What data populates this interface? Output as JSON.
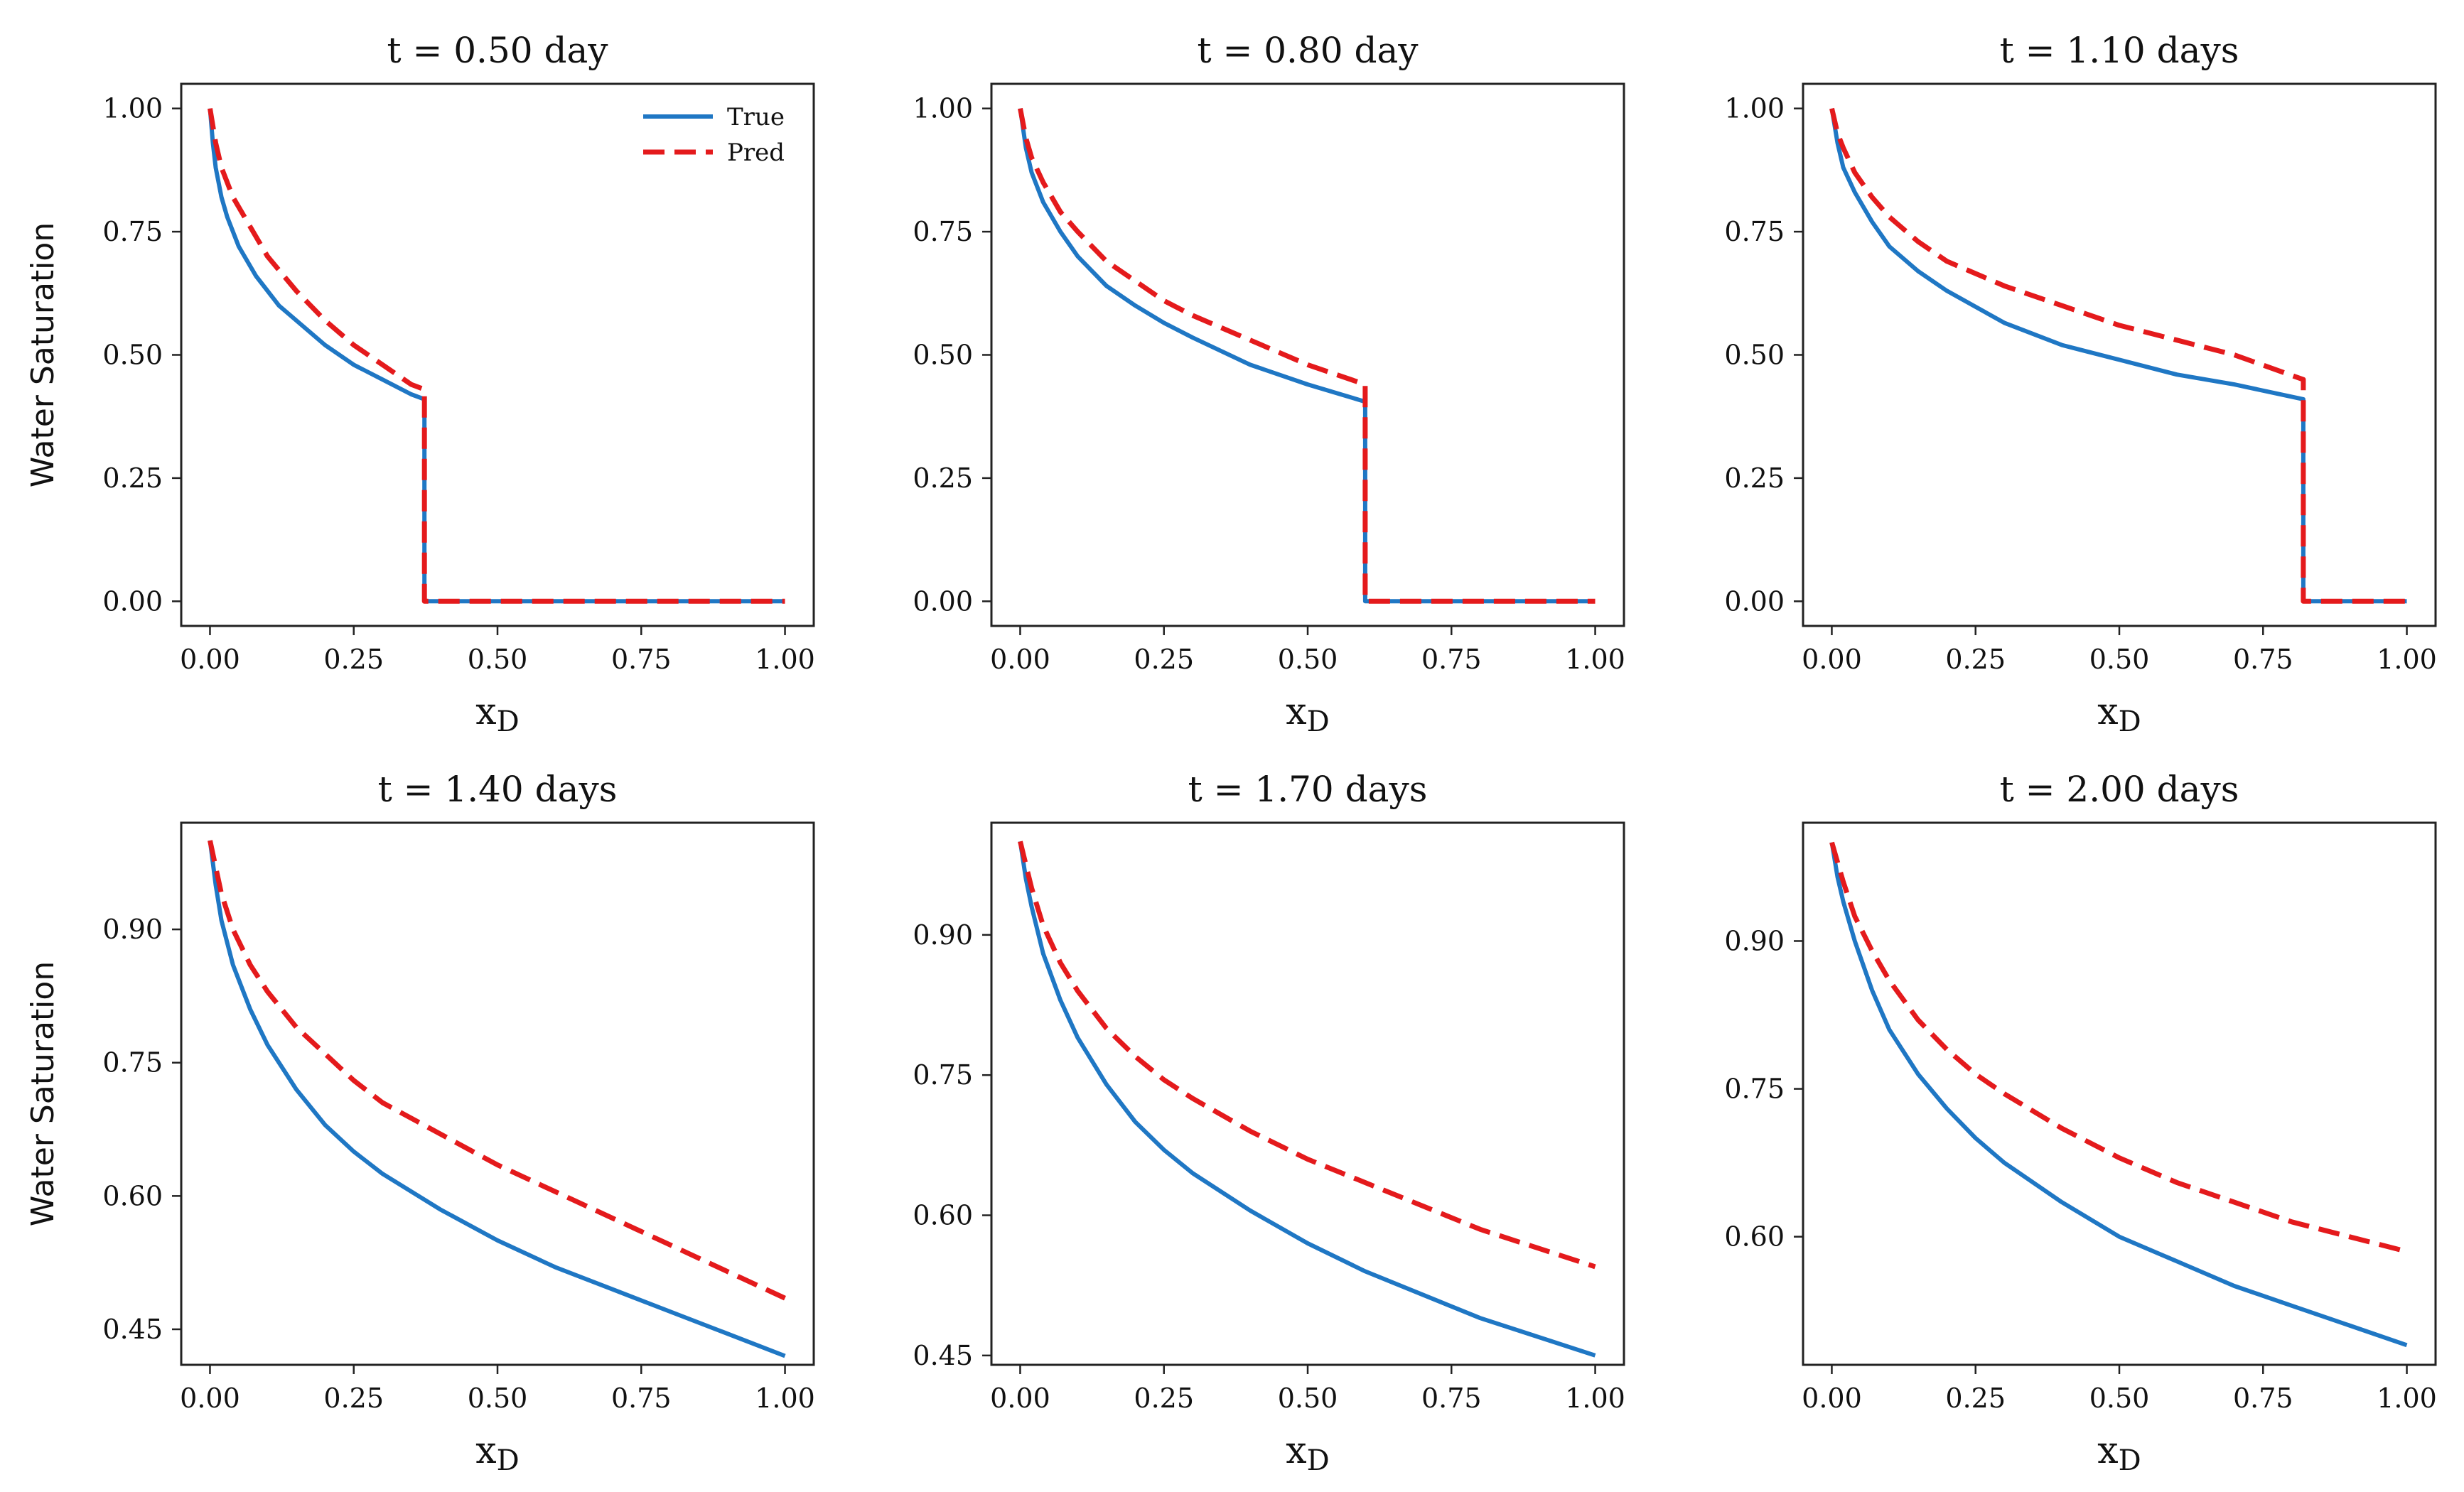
{
  "chart_data": [
    {
      "type": "line",
      "title": "t = 0.50 day",
      "xlabel": "x",
      "xlabel_sub": "D",
      "ylabel": "Water Saturation",
      "xlim": [
        -0.05,
        1.05
      ],
      "ylim": [
        -0.05,
        1.05
      ],
      "xticks": [
        0,
        0.25,
        0.5,
        0.75,
        1
      ],
      "xtick_labels": [
        "0.00",
        "0.25",
        "0.50",
        "0.75",
        "1.00"
      ],
      "yticks": [
        0,
        0.25,
        0.5,
        0.75,
        1
      ],
      "ytick_labels": [
        "0.00",
        "0.25",
        "0.50",
        "0.75",
        "1.00"
      ],
      "legend": {
        "position": "top-right",
        "entries": [
          "True",
          "Pred"
        ]
      },
      "series": [
        {
          "name": "True",
          "color": "#1f77c4",
          "style": "solid",
          "x": [
            0,
            0.005,
            0.01,
            0.02,
            0.03,
            0.05,
            0.08,
            0.12,
            0.16,
            0.2,
            0.25,
            0.3,
            0.35,
            0.373,
            0.373,
            0.4,
            0.5,
            0.6,
            0.7,
            0.8,
            0.9,
            1.0
          ],
          "y": [
            1.0,
            0.93,
            0.88,
            0.82,
            0.78,
            0.72,
            0.66,
            0.6,
            0.56,
            0.52,
            0.48,
            0.45,
            0.42,
            0.41,
            0.0,
            0,
            0,
            0,
            0,
            0,
            0,
            0
          ]
        },
        {
          "name": "Pred",
          "color": "#e41a1c",
          "style": "dashed",
          "x": [
            0,
            0.01,
            0.02,
            0.04,
            0.07,
            0.1,
            0.15,
            0.2,
            0.25,
            0.3,
            0.35,
            0.373,
            0.373,
            0.4,
            0.5,
            0.6,
            0.7,
            0.8,
            0.9,
            1.0
          ],
          "y": [
            1.0,
            0.93,
            0.88,
            0.82,
            0.76,
            0.7,
            0.63,
            0.57,
            0.52,
            0.48,
            0.44,
            0.43,
            0.0,
            0,
            0,
            0,
            0,
            0,
            0,
            0
          ]
        }
      ]
    },
    {
      "type": "line",
      "title": "t = 0.80 day",
      "xlabel": "x",
      "xlabel_sub": "D",
      "ylabel": "",
      "xlim": [
        -0.05,
        1.05
      ],
      "ylim": [
        -0.05,
        1.05
      ],
      "xticks": [
        0,
        0.25,
        0.5,
        0.75,
        1
      ],
      "xtick_labels": [
        "0.00",
        "0.25",
        "0.50",
        "0.75",
        "1.00"
      ],
      "yticks": [
        0,
        0.25,
        0.5,
        0.75,
        1
      ],
      "ytick_labels": [
        "0.00",
        "0.25",
        "0.50",
        "0.75",
        "1.00"
      ],
      "series": [
        {
          "name": "True",
          "color": "#1f77c4",
          "style": "solid",
          "x": [
            0,
            0.01,
            0.02,
            0.04,
            0.07,
            0.1,
            0.15,
            0.2,
            0.25,
            0.3,
            0.4,
            0.5,
            0.6,
            0.6,
            0.7,
            0.8,
            0.9,
            1.0
          ],
          "y": [
            1.0,
            0.92,
            0.87,
            0.81,
            0.75,
            0.7,
            0.64,
            0.6,
            0.565,
            0.535,
            0.48,
            0.44,
            0.405,
            0.0,
            0,
            0,
            0,
            0
          ]
        },
        {
          "name": "Pred",
          "color": "#e41a1c",
          "style": "dashed",
          "x": [
            0,
            0.01,
            0.02,
            0.04,
            0.07,
            0.1,
            0.15,
            0.2,
            0.25,
            0.3,
            0.4,
            0.5,
            0.6,
            0.6,
            0.7,
            0.8,
            0.9,
            1.0
          ],
          "y": [
            1.0,
            0.94,
            0.9,
            0.85,
            0.79,
            0.75,
            0.69,
            0.65,
            0.61,
            0.58,
            0.53,
            0.48,
            0.44,
            0.0,
            0,
            0,
            0,
            0
          ]
        }
      ]
    },
    {
      "type": "line",
      "title": "t = 1.10 days",
      "xlabel": "x",
      "xlabel_sub": "D",
      "ylabel": "",
      "xlim": [
        -0.05,
        1.05
      ],
      "ylim": [
        -0.05,
        1.05
      ],
      "xticks": [
        0,
        0.25,
        0.5,
        0.75,
        1
      ],
      "xtick_labels": [
        "0.00",
        "0.25",
        "0.50",
        "0.75",
        "1.00"
      ],
      "yticks": [
        0,
        0.25,
        0.5,
        0.75,
        1
      ],
      "ytick_labels": [
        "0.00",
        "0.25",
        "0.50",
        "0.75",
        "1.00"
      ],
      "series": [
        {
          "name": "True",
          "color": "#1f77c4",
          "style": "solid",
          "x": [
            0,
            0.01,
            0.02,
            0.04,
            0.07,
            0.1,
            0.15,
            0.2,
            0.3,
            0.4,
            0.5,
            0.6,
            0.7,
            0.82,
            0.82,
            0.9,
            1.0
          ],
          "y": [
            1.0,
            0.93,
            0.88,
            0.83,
            0.77,
            0.72,
            0.67,
            0.63,
            0.565,
            0.52,
            0.49,
            0.46,
            0.44,
            0.41,
            0.0,
            0,
            0
          ]
        },
        {
          "name": "Pred",
          "color": "#e41a1c",
          "style": "dashed",
          "x": [
            0,
            0.01,
            0.02,
            0.04,
            0.07,
            0.1,
            0.15,
            0.2,
            0.3,
            0.4,
            0.5,
            0.6,
            0.7,
            0.82,
            0.82,
            0.9,
            1.0
          ],
          "y": [
            1.0,
            0.95,
            0.92,
            0.87,
            0.82,
            0.78,
            0.73,
            0.69,
            0.64,
            0.6,
            0.56,
            0.53,
            0.5,
            0.45,
            0.0,
            0,
            0
          ]
        }
      ]
    },
    {
      "type": "line",
      "title": "t = 1.40 days",
      "xlabel": "x",
      "xlabel_sub": "D",
      "ylabel": "Water Saturation",
      "xlim": [
        -0.05,
        1.05
      ],
      "ylim": [
        0.41,
        1.02
      ],
      "xticks": [
        0,
        0.25,
        0.5,
        0.75,
        1
      ],
      "xtick_labels": [
        "0.00",
        "0.25",
        "0.50",
        "0.75",
        "1.00"
      ],
      "yticks": [
        0.45,
        0.6,
        0.75,
        0.9
      ],
      "ytick_labels": [
        "0.45",
        "0.60",
        "0.75",
        "0.90"
      ],
      "series": [
        {
          "name": "True",
          "color": "#1f77c4",
          "style": "solid",
          "x": [
            0,
            0.01,
            0.02,
            0.04,
            0.07,
            0.1,
            0.15,
            0.2,
            0.25,
            0.3,
            0.4,
            0.5,
            0.6,
            0.7,
            0.8,
            0.9,
            1.0
          ],
          "y": [
            1.0,
            0.95,
            0.91,
            0.86,
            0.81,
            0.77,
            0.72,
            0.68,
            0.65,
            0.625,
            0.585,
            0.55,
            0.52,
            0.495,
            0.47,
            0.445,
            0.42
          ]
        },
        {
          "name": "Pred",
          "color": "#e41a1c",
          "style": "dashed",
          "x": [
            0,
            0.01,
            0.02,
            0.04,
            0.07,
            0.1,
            0.15,
            0.2,
            0.25,
            0.3,
            0.4,
            0.5,
            0.6,
            0.7,
            0.8,
            0.9,
            1.0
          ],
          "y": [
            1.0,
            0.97,
            0.94,
            0.9,
            0.86,
            0.83,
            0.79,
            0.76,
            0.73,
            0.705,
            0.67,
            0.635,
            0.605,
            0.575,
            0.545,
            0.515,
            0.485
          ]
        }
      ]
    },
    {
      "type": "line",
      "title": "t = 1.70 days",
      "xlabel": "x",
      "xlabel_sub": "D",
      "ylabel": "",
      "xlim": [
        -0.05,
        1.05
      ],
      "ylim": [
        0.44,
        1.02
      ],
      "xticks": [
        0,
        0.25,
        0.5,
        0.75,
        1
      ],
      "xtick_labels": [
        "0.00",
        "0.25",
        "0.50",
        "0.75",
        "1.00"
      ],
      "yticks": [
        0.45,
        0.6,
        0.75,
        0.9
      ],
      "ytick_labels": [
        "0.45",
        "0.60",
        "0.75",
        "0.90"
      ],
      "series": [
        {
          "name": "True",
          "color": "#1f77c4",
          "style": "solid",
          "x": [
            0,
            0.01,
            0.02,
            0.04,
            0.07,
            0.1,
            0.15,
            0.2,
            0.25,
            0.3,
            0.4,
            0.5,
            0.6,
            0.7,
            0.8,
            0.9,
            1.0
          ],
          "y": [
            1.0,
            0.96,
            0.93,
            0.88,
            0.83,
            0.79,
            0.74,
            0.7,
            0.67,
            0.645,
            0.605,
            0.57,
            0.54,
            0.515,
            0.49,
            0.47,
            0.45
          ]
        },
        {
          "name": "Pred",
          "color": "#e41a1c",
          "style": "dashed",
          "x": [
            0,
            0.01,
            0.02,
            0.04,
            0.07,
            0.1,
            0.15,
            0.2,
            0.25,
            0.3,
            0.4,
            0.5,
            0.6,
            0.7,
            0.8,
            0.9,
            1.0
          ],
          "y": [
            1.0,
            0.975,
            0.95,
            0.91,
            0.87,
            0.84,
            0.8,
            0.77,
            0.745,
            0.725,
            0.69,
            0.66,
            0.635,
            0.61,
            0.585,
            0.565,
            0.545
          ]
        }
      ]
    },
    {
      "type": "line",
      "title": "t = 2.00 days",
      "xlabel": "x",
      "xlabel_sub": "D",
      "ylabel": "",
      "xlim": [
        -0.05,
        1.05
      ],
      "ylim": [
        0.47,
        1.02
      ],
      "xticks": [
        0,
        0.25,
        0.5,
        0.75,
        1
      ],
      "xtick_labels": [
        "0.00",
        "0.25",
        "0.50",
        "0.75",
        "1.00"
      ],
      "yticks": [
        0.6,
        0.75,
        0.9
      ],
      "ytick_labels": [
        "0.60",
        "0.75",
        "0.90"
      ],
      "series": [
        {
          "name": "True",
          "color": "#1f77c4",
          "style": "solid",
          "x": [
            0,
            0.01,
            0.02,
            0.04,
            0.07,
            0.1,
            0.15,
            0.2,
            0.25,
            0.3,
            0.4,
            0.5,
            0.6,
            0.7,
            0.8,
            0.9,
            1.0
          ],
          "y": [
            1.0,
            0.965,
            0.94,
            0.9,
            0.85,
            0.81,
            0.765,
            0.73,
            0.7,
            0.675,
            0.635,
            0.6,
            0.575,
            0.55,
            0.53,
            0.51,
            0.49
          ]
        },
        {
          "name": "Pred",
          "color": "#e41a1c",
          "style": "dashed",
          "x": [
            0,
            0.01,
            0.02,
            0.04,
            0.07,
            0.1,
            0.15,
            0.2,
            0.25,
            0.3,
            0.4,
            0.5,
            0.6,
            0.7,
            0.8,
            0.9,
            1.0
          ],
          "y": [
            1.0,
            0.98,
            0.96,
            0.925,
            0.89,
            0.86,
            0.82,
            0.79,
            0.765,
            0.745,
            0.71,
            0.68,
            0.655,
            0.635,
            0.615,
            0.6,
            0.585
          ]
        }
      ]
    }
  ]
}
